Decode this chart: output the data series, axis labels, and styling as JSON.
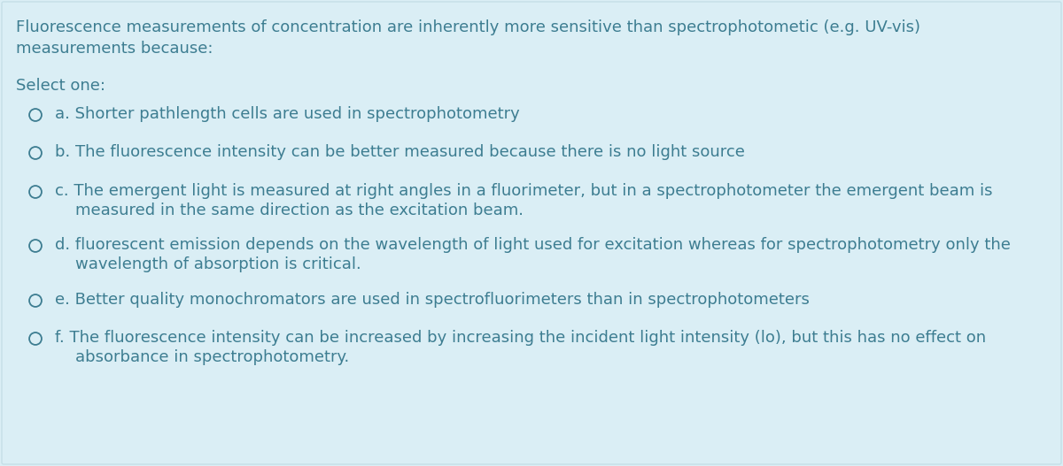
{
  "background_color": "#daeef5",
  "border_color": "#c5dfe8",
  "text_color": "#3d7d91",
  "title_line1": "Fluorescence measurements of concentration are inherently more sensitive than spectrophotometic (e.g. UV-vis)",
  "title_line2": "measurements because:",
  "select_label": "Select one:",
  "options": [
    {
      "lines": [
        "a. Shorter pathlength cells are used in spectrophotometry"
      ],
      "num_lines": 1
    },
    {
      "lines": [
        "b. The fluorescence intensity can be better measured because there is no light source"
      ],
      "num_lines": 1
    },
    {
      "lines": [
        "c. The emergent light is measured at right angles in a fluorimeter, but in a spectrophotometer the emergent beam is",
        "    measured in the same direction as the excitation beam."
      ],
      "num_lines": 2
    },
    {
      "lines": [
        "d. fluorescent emission depends on the wavelength of light used for excitation whereas for spectrophotometry only the",
        "    wavelength of absorption is critical."
      ],
      "num_lines": 2
    },
    {
      "lines": [
        "e. Better quality monochromators are used in spectrofluorimeters than in spectrophotometers"
      ],
      "num_lines": 1
    },
    {
      "lines": [
        "f. The fluorescence intensity can be increased by increasing the incident light intensity (lo), but this has no effect on",
        "    absorbance in spectrophotometry."
      ],
      "num_lines": 2
    }
  ],
  "title_fontsize": 13.0,
  "option_fontsize": 13.0,
  "select_fontsize": 13.0,
  "fig_width": 12.0,
  "fig_height": 5.27,
  "dpi": 100
}
